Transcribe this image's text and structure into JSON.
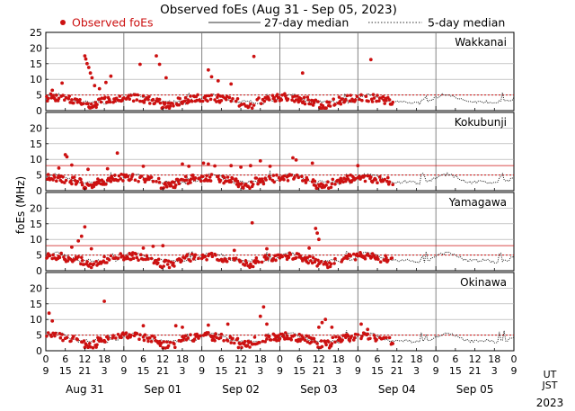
{
  "chart_data": {
    "type": "scatter",
    "title": "Observed foEs (Aug 31 - Sep 05, 2023)",
    "ylabel": "foEs (MHz)",
    "legend": {
      "observed": "Observed foEs",
      "median27": "27-day median",
      "median5": "5-day median"
    },
    "colors": {
      "observed": "#cc1111",
      "median27": "#cc1111",
      "median5": "#222222",
      "grid": "#999999"
    },
    "ylim": [
      0,
      25
    ],
    "yticks": [
      0,
      5,
      10,
      15,
      20,
      25
    ],
    "days": [
      "Aug 31",
      "Sep 01",
      "Sep 02",
      "Sep 03",
      "Sep 04",
      "Sep 05"
    ],
    "year": "2023",
    "ut_label": "UT",
    "jst_label": "JST",
    "ut_ticks": [
      "0",
      "6",
      "12",
      "18",
      "0",
      "6",
      "12",
      "18",
      "0",
      "6",
      "12",
      "18",
      "0",
      "6",
      "12",
      "18",
      "0",
      "6",
      "12",
      "18",
      "0",
      "6",
      "12",
      "18",
      "0"
    ],
    "jst_ticks": [
      "9",
      "15",
      "21",
      "3",
      "9",
      "15",
      "21",
      "3",
      "9",
      "15",
      "21",
      "3",
      "9",
      "15",
      "21",
      "3",
      "9",
      "15",
      "21",
      "3",
      "9",
      "15",
      "21",
      "3",
      "9"
    ],
    "observed_end_hour": 107,
    "stations": [
      {
        "name": "Wakkanai",
        "median27": 5.0,
        "base": 3.4,
        "yticks": [
          0,
          5,
          10,
          15,
          20,
          25
        ],
        "outliers": [
          {
            "t": 2,
            "v": 6.5
          },
          {
            "t": 5,
            "v": 8.8
          },
          {
            "t": 12.0,
            "v": 17.5
          },
          {
            "t": 12.3,
            "v": 16.5
          },
          {
            "t": 12.7,
            "v": 15.0
          },
          {
            "t": 13.2,
            "v": 13.8
          },
          {
            "t": 13.7,
            "v": 12.0
          },
          {
            "t": 14.2,
            "v": 10.5
          },
          {
            "t": 15,
            "v": 8.0
          },
          {
            "t": 16.5,
            "v": 7.0
          },
          {
            "t": 18.5,
            "v": 9.0
          },
          {
            "t": 20,
            "v": 11.0
          },
          {
            "t": 29,
            "v": 14.8
          },
          {
            "t": 34,
            "v": 17.5
          },
          {
            "t": 35,
            "v": 14.8
          },
          {
            "t": 37,
            "v": 10.5
          },
          {
            "t": 50,
            "v": 13.0
          },
          {
            "t": 51,
            "v": 10.8
          },
          {
            "t": 53,
            "v": 9.5
          },
          {
            "t": 57,
            "v": 8.5
          },
          {
            "t": 64,
            "v": 17.3
          },
          {
            "t": 79,
            "v": 12.0
          },
          {
            "t": 100,
            "v": 16.3
          }
        ]
      },
      {
        "name": "Kokubunji",
        "median27": 5.0,
        "median27_upper": 8.0,
        "base": 3.4,
        "yticks": [
          0,
          5,
          10,
          15,
          20
        ],
        "outliers": [
          {
            "t": 4,
            "v": 7.2
          },
          {
            "t": 6,
            "v": 11.5
          },
          {
            "t": 6.5,
            "v": 10.8
          },
          {
            "t": 8,
            "v": 8.2
          },
          {
            "t": 13,
            "v": 6.8
          },
          {
            "t": 19,
            "v": 7.0
          },
          {
            "t": 22,
            "v": 12.0
          },
          {
            "t": 30,
            "v": 7.8
          },
          {
            "t": 42,
            "v": 8.5
          },
          {
            "t": 44,
            "v": 7.8
          },
          {
            "t": 48.5,
            "v": 8.8
          },
          {
            "t": 50,
            "v": 8.5
          },
          {
            "t": 52,
            "v": 7.9
          },
          {
            "t": 57,
            "v": 8.0
          },
          {
            "t": 60,
            "v": 7.5
          },
          {
            "t": 63,
            "v": 8.0
          },
          {
            "t": 66,
            "v": 9.5
          },
          {
            "t": 69,
            "v": 7.8
          },
          {
            "t": 76,
            "v": 10.5
          },
          {
            "t": 77,
            "v": 9.8
          },
          {
            "t": 82,
            "v": 8.8
          },
          {
            "t": 96,
            "v": 8.0
          }
        ]
      },
      {
        "name": "Yamagawa",
        "median27": 5.0,
        "median27_upper": 8.0,
        "base": 3.9,
        "yticks": [
          0,
          5,
          10,
          15,
          20
        ],
        "outliers": [
          {
            "t": 8,
            "v": 7.5
          },
          {
            "t": 10,
            "v": 9.5
          },
          {
            "t": 11,
            "v": 11.0
          },
          {
            "t": 12,
            "v": 14.0
          },
          {
            "t": 14,
            "v": 7.0
          },
          {
            "t": 30,
            "v": 7.2
          },
          {
            "t": 33,
            "v": 7.8
          },
          {
            "t": 36,
            "v": 8.0
          },
          {
            "t": 58,
            "v": 6.5
          },
          {
            "t": 63.5,
            "v": 15.3
          },
          {
            "t": 68,
            "v": 7.0
          },
          {
            "t": 81,
            "v": 7.2
          },
          {
            "t": 83,
            "v": 13.5
          },
          {
            "t": 83.5,
            "v": 12.0
          },
          {
            "t": 84,
            "v": 10.0
          }
        ]
      },
      {
        "name": "Okinawa",
        "median27": 5.0,
        "base": 3.8,
        "yticks": [
          0,
          5,
          10,
          15,
          20
        ],
        "outliers": [
          {
            "t": 1,
            "v": 12.0
          },
          {
            "t": 2,
            "v": 9.5
          },
          {
            "t": 18,
            "v": 15.8
          },
          {
            "t": 30,
            "v": 8.0
          },
          {
            "t": 40,
            "v": 8.0
          },
          {
            "t": 42,
            "v": 7.5
          },
          {
            "t": 50,
            "v": 8.2
          },
          {
            "t": 56,
            "v": 8.5
          },
          {
            "t": 66,
            "v": 11.0
          },
          {
            "t": 67,
            "v": 14.0
          },
          {
            "t": 68,
            "v": 8.5
          },
          {
            "t": 84,
            "v": 7.5
          },
          {
            "t": 85,
            "v": 9.0
          },
          {
            "t": 86,
            "v": 10.0
          },
          {
            "t": 88,
            "v": 7.5
          },
          {
            "t": 97,
            "v": 8.5
          },
          {
            "t": 99,
            "v": 6.8
          }
        ]
      }
    ]
  }
}
